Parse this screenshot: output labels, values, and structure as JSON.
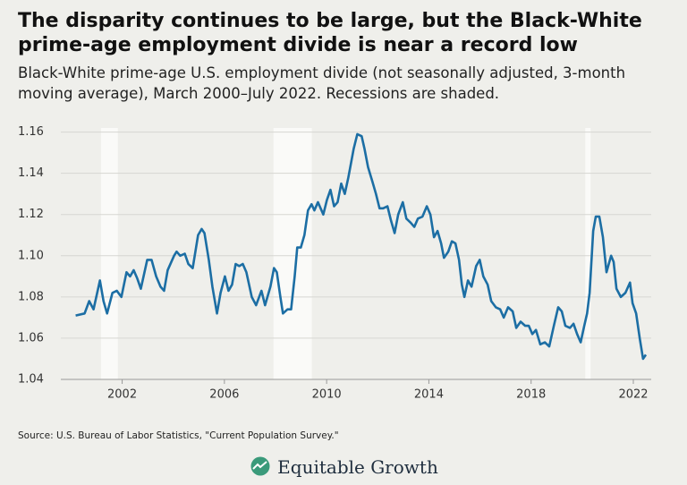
{
  "chart_data": {
    "type": "line",
    "title": "The disparity continues to be large, but the Black-White prime-age employment divide is near a record low",
    "subtitle": "Black-White prime-age U.S. employment divide (not seasonally adjusted, 3-month moving average), March 2000–July 2022. Recessions are shaded.",
    "source": "Source: U.S. Bureau of Labor Statistics, \"Current Population Survey.\"",
    "brand": "Equitable Growth",
    "color": "#1c6ea4",
    "recessions": [
      [
        2001.17,
        2001.83
      ],
      [
        2007.92,
        2009.42
      ],
      [
        2020.12,
        2020.33
      ]
    ],
    "xlim": [
      1999.6,
      2022.7
    ],
    "xticks": [
      2002,
      2006,
      2010,
      2014,
      2018,
      2022
    ],
    "ylim": [
      1.04,
      1.162
    ],
    "yticks": [
      1.04,
      1.06,
      1.08,
      {
        "value": 1.1,
        "label": "1.10"
      },
      1.12,
      1.14,
      1.16
    ],
    "grid": true,
    "x": [
      2000.18,
      2000.53,
      2000.71,
      2000.88,
      2001.13,
      2001.27,
      2001.41,
      2001.62,
      2001.79,
      2001.97,
      2002.17,
      2002.31,
      2002.45,
      2002.59,
      2002.73,
      2002.98,
      2003.15,
      2003.33,
      2003.5,
      2003.64,
      2003.78,
      2004.03,
      2004.13,
      2004.27,
      2004.45,
      2004.59,
      2004.76,
      2004.97,
      2005.11,
      2005.22,
      2005.39,
      2005.53,
      2005.71,
      2005.85,
      2006.02,
      2006.16,
      2006.3,
      2006.44,
      2006.58,
      2006.72,
      2006.86,
      2007.07,
      2007.24,
      2007.45,
      2007.59,
      2007.8,
      2007.94,
      2008.05,
      2008.19,
      2008.29,
      2008.47,
      2008.61,
      2008.75,
      2008.85,
      2008.99,
      2009.13,
      2009.27,
      2009.41,
      2009.52,
      2009.66,
      2009.87,
      2010.01,
      2010.15,
      2010.29,
      2010.43,
      2010.57,
      2010.71,
      2010.85,
      2011.06,
      2011.2,
      2011.37,
      2011.48,
      2011.62,
      2011.79,
      2011.93,
      2012.07,
      2012.21,
      2012.38,
      2012.52,
      2012.66,
      2012.8,
      2012.98,
      2013.12,
      2013.29,
      2013.43,
      2013.57,
      2013.75,
      2013.92,
      2014.06,
      2014.2,
      2014.34,
      2014.48,
      2014.59,
      2014.76,
      2014.9,
      2015.04,
      2015.18,
      2015.29,
      2015.39,
      2015.53,
      2015.67,
      2015.85,
      2015.99,
      2016.13,
      2016.3,
      2016.44,
      2016.62,
      2016.79,
      2016.93,
      2017.1,
      2017.28,
      2017.42,
      2017.59,
      2017.77,
      2017.91,
      2018.05,
      2018.19,
      2018.36,
      2018.54,
      2018.71,
      2018.89,
      2019.06,
      2019.2,
      2019.34,
      2019.52,
      2019.66,
      2019.8,
      2019.94,
      2020.08,
      2020.19,
      2020.29,
      2020.43,
      2020.53,
      2020.67,
      2020.81,
      2020.95,
      2021.13,
      2021.23,
      2021.34,
      2021.51,
      2021.69,
      2021.87,
      2021.97,
      2022.11,
      2022.25,
      2022.38,
      2022.49
    ],
    "values": [
      1.071,
      1.072,
      1.078,
      1.074,
      1.088,
      1.078,
      1.072,
      1.082,
      1.083,
      1.08,
      1.092,
      1.09,
      1.093,
      1.089,
      1.084,
      1.098,
      1.098,
      1.09,
      1.085,
      1.083,
      1.093,
      1.1,
      1.102,
      1.1,
      1.101,
      1.096,
      1.094,
      1.11,
      1.113,
      1.111,
      1.098,
      1.085,
      1.072,
      1.082,
      1.09,
      1.083,
      1.086,
      1.096,
      1.095,
      1.096,
      1.092,
      1.08,
      1.076,
      1.083,
      1.076,
      1.085,
      1.094,
      1.092,
      1.08,
      1.072,
      1.074,
      1.074,
      1.09,
      1.104,
      1.104,
      1.11,
      1.122,
      1.125,
      1.122,
      1.126,
      1.12,
      1.127,
      1.132,
      1.124,
      1.126,
      1.135,
      1.13,
      1.138,
      1.152,
      1.159,
      1.158,
      1.152,
      1.143,
      1.136,
      1.13,
      1.123,
      1.123,
      1.124,
      1.117,
      1.111,
      1.12,
      1.126,
      1.118,
      1.116,
      1.114,
      1.118,
      1.119,
      1.124,
      1.12,
      1.109,
      1.112,
      1.106,
      1.099,
      1.102,
      1.107,
      1.106,
      1.098,
      1.086,
      1.08,
      1.088,
      1.085,
      1.095,
      1.098,
      1.09,
      1.086,
      1.078,
      1.075,
      1.074,
      1.07,
      1.075,
      1.073,
      1.065,
      1.068,
      1.066,
      1.066,
      1.062,
      1.064,
      1.057,
      1.058,
      1.056,
      1.066,
      1.075,
      1.073,
      1.066,
      1.065,
      1.067,
      1.062,
      1.058,
      1.066,
      1.072,
      1.082,
      1.112,
      1.119,
      1.119,
      1.109,
      1.092,
      1.1,
      1.097,
      1.084,
      1.08,
      1.082,
      1.087,
      1.077,
      1.072,
      1.06,
      1.05,
      1.052
    ]
  }
}
